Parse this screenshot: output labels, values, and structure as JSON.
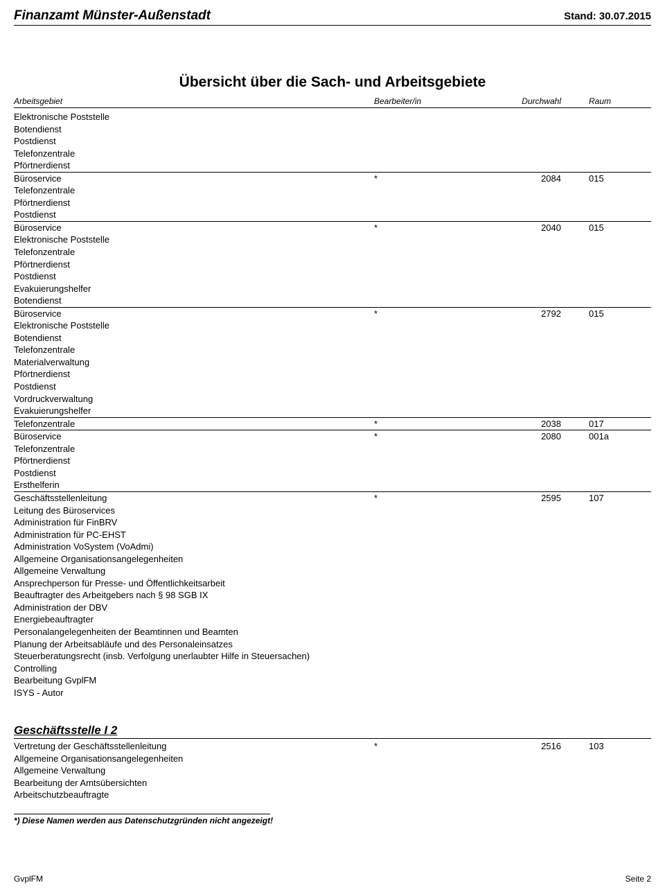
{
  "header": {
    "org": "Finanzamt Münster-Außenstadt",
    "stand_label": "Stand:",
    "stand_date": "30.07.2015"
  },
  "title": "Übersicht über die Sach- und Arbeitsgebiete",
  "columns": {
    "a": "Arbeitsgebiet",
    "b": "Bearbeiter/in",
    "c": "Durchwahl",
    "d": "Raum"
  },
  "groups": [
    {
      "main": {
        "a": "Elektronische Poststelle"
      },
      "subs": [
        "Botendienst",
        "Postdienst",
        "Telefonzentrale",
        "Pförtnerdienst"
      ]
    },
    {
      "main": {
        "a": "Büroservice",
        "b": "*",
        "c": "2084",
        "d": "015"
      },
      "subs": [
        "Telefonzentrale",
        "Pförtnerdienst",
        "Postdienst"
      ]
    },
    {
      "main": {
        "a": "Büroservice",
        "b": "*",
        "c": "2040",
        "d": "015"
      },
      "subs": [
        "Elektronische Poststelle",
        "Telefonzentrale",
        "Pförtnerdienst",
        "Postdienst",
        "Evakuierungshelfer",
        "Botendienst"
      ]
    },
    {
      "main": {
        "a": "Büroservice",
        "b": "*",
        "c": "2792",
        "d": "015"
      },
      "subs": [
        "Elektronische Poststelle",
        "Botendienst",
        "Telefonzentrale",
        "Materialverwaltung",
        "Pförtnerdienst",
        "Postdienst",
        "Vordruckverwaltung",
        "Evakuierungshelfer"
      ]
    },
    {
      "main": {
        "a": "Telefonzentrale",
        "b": "*",
        "c": "2038",
        "d": "017"
      },
      "subs": []
    },
    {
      "main": {
        "a": "Büroservice",
        "b": "*",
        "c": "2080",
        "d": "001a"
      },
      "subs": [
        "Telefonzentrale",
        "Pförtnerdienst",
        "Postdienst",
        "Ersthelferin"
      ]
    },
    {
      "main": {
        "a": "Geschäftsstellenleitung",
        "b": "*",
        "c": "2595",
        "d": "107"
      },
      "subs": [
        "Leitung des Büroservices",
        "Administration für FinBRV",
        "Administration für PC-EHST",
        "Administration VoSystem (VoAdmi)",
        "Allgemeine Organisationsangelegenheiten",
        "Allgemeine Verwaltung",
        "Ansprechperson für Presse- und Öffentlichkeitsarbeit",
        "Beauftragter des Arbeitgebers nach § 98 SGB IX",
        "Administration der DBV",
        "Energiebeauftragter",
        "Personalangelegenheiten der Beamtinnen und Beamten",
        "Planung der Arbeitsabläufe und des Personaleinsatzes",
        "Steuerberatungsrecht (insb. Verfolgung unerlaubter Hilfe in Steuersachen)",
        "Controlling",
        "Bearbeitung GvplFM",
        "ISYS - Autor"
      ]
    }
  ],
  "section2": {
    "title": "Geschäftsstelle I 2",
    "groups": [
      {
        "main": {
          "a": "Vertretung der Geschäftsstellenleitung",
          "b": "*",
          "c": "2516",
          "d": "103"
        },
        "subs": [
          "Allgemeine Organisationsangelegenheiten",
          "Allgemeine Verwaltung",
          "Bearbeitung der Amtsübersichten",
          "Arbeitschutzbeauftragte"
        ]
      }
    ]
  },
  "footnote": "*) Diese Namen werden aus Datenschutzgründen nicht angezeigt!",
  "footer": {
    "left": "GvplFM",
    "right": "Seite 2"
  }
}
